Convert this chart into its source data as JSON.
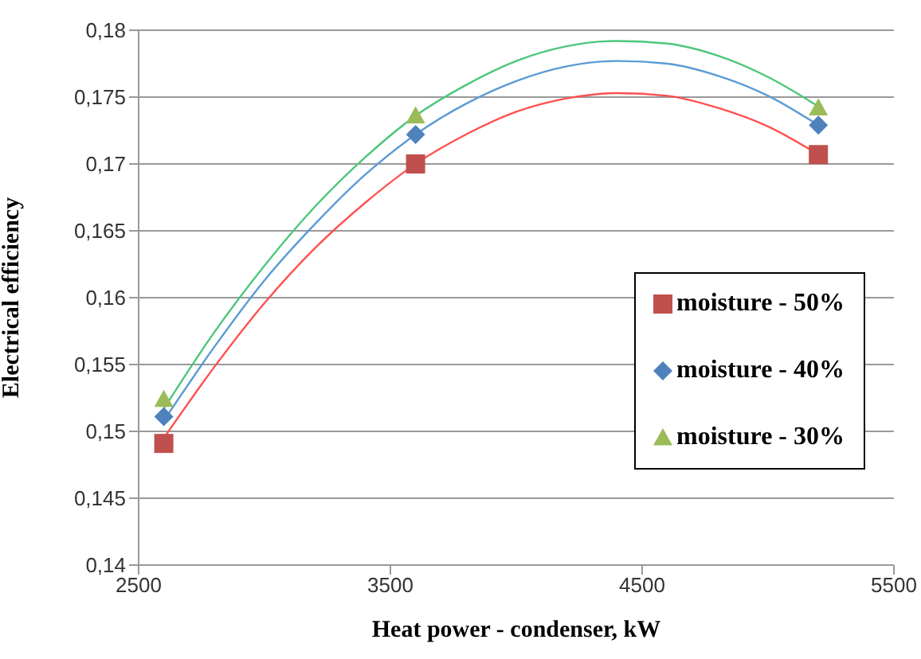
{
  "chart_data": {
    "type": "scatter",
    "xlabel": "Heat power - condenser, kW",
    "ylabel": "Electrical efficiency",
    "xlim": [
      2500,
      5500
    ],
    "xticks": [
      2500,
      3500,
      4500,
      5500
    ],
    "ylim": [
      0.14,
      0.18
    ],
    "yticks": [
      {
        "value": 0.14,
        "label": "0,14"
      },
      {
        "value": 0.145,
        "label": "0,145"
      },
      {
        "value": 0.15,
        "label": "0,15"
      },
      {
        "value": 0.155,
        "label": "0,155"
      },
      {
        "value": 0.16,
        "label": "0,16"
      },
      {
        "value": 0.165,
        "label": "0,165"
      },
      {
        "value": 0.17,
        "label": "0,17"
      },
      {
        "value": 0.175,
        "label": "0,175"
      },
      {
        "value": 0.18,
        "label": "0,18"
      }
    ],
    "grid": "y",
    "legend": "right",
    "series": [
      {
        "type": "line",
        "color": "#ff5050",
        "marker": "none",
        "x": [
          2600,
          2800,
          3000,
          3200,
          3400,
          3600,
          3800,
          4000,
          4200,
          4400,
          4600,
          4800,
          5000,
          5200
        ],
        "values": [
          0.1495,
          0.1548,
          0.1596,
          0.1637,
          0.1671,
          0.17,
          0.1722,
          0.1739,
          0.1749,
          0.1753,
          0.1751,
          0.1742,
          0.1728,
          0.1707
        ]
      },
      {
        "type": "line",
        "color": "#5b9bd5",
        "marker": "none",
        "x": [
          2600,
          2800,
          3000,
          3200,
          3400,
          3600,
          3800,
          4000,
          4200,
          4400,
          4600,
          4800,
          5000,
          5200
        ],
        "values": [
          0.1508,
          0.1563,
          0.1613,
          0.1655,
          0.1692,
          0.1722,
          0.1745,
          0.1762,
          0.1773,
          0.1777,
          0.1775,
          0.1766,
          0.1751,
          0.1729
        ]
      },
      {
        "type": "line",
        "color": "#4cc77a",
        "marker": "none",
        "x": [
          2600,
          2800,
          3000,
          3200,
          3400,
          3600,
          3800,
          4000,
          4200,
          4400,
          4600,
          4800,
          5000,
          5200
        ],
        "values": [
          0.1517,
          0.1574,
          0.1624,
          0.1668,
          0.1705,
          0.1736,
          0.1759,
          0.1777,
          0.1788,
          0.1792,
          0.179,
          0.1781,
          0.1765,
          0.1743
        ]
      },
      {
        "name": "moisture - 50%",
        "color": "#c0504d",
        "marker": "square",
        "x": [
          2600,
          3600,
          5200
        ],
        "values": [
          0.1491,
          0.17,
          0.1707
        ]
      },
      {
        "name": "moisture - 40%",
        "color": "#4f81bd",
        "marker": "diamond",
        "x": [
          2600,
          3600,
          5200
        ],
        "values": [
          0.1511,
          0.1722,
          0.1729
        ]
      },
      {
        "name": "moisture - 30%",
        "color": "#9bbb59",
        "marker": "triangle",
        "x": [
          2600,
          3600,
          5200
        ],
        "values": [
          0.1524,
          0.1736,
          0.1742
        ]
      }
    ]
  }
}
